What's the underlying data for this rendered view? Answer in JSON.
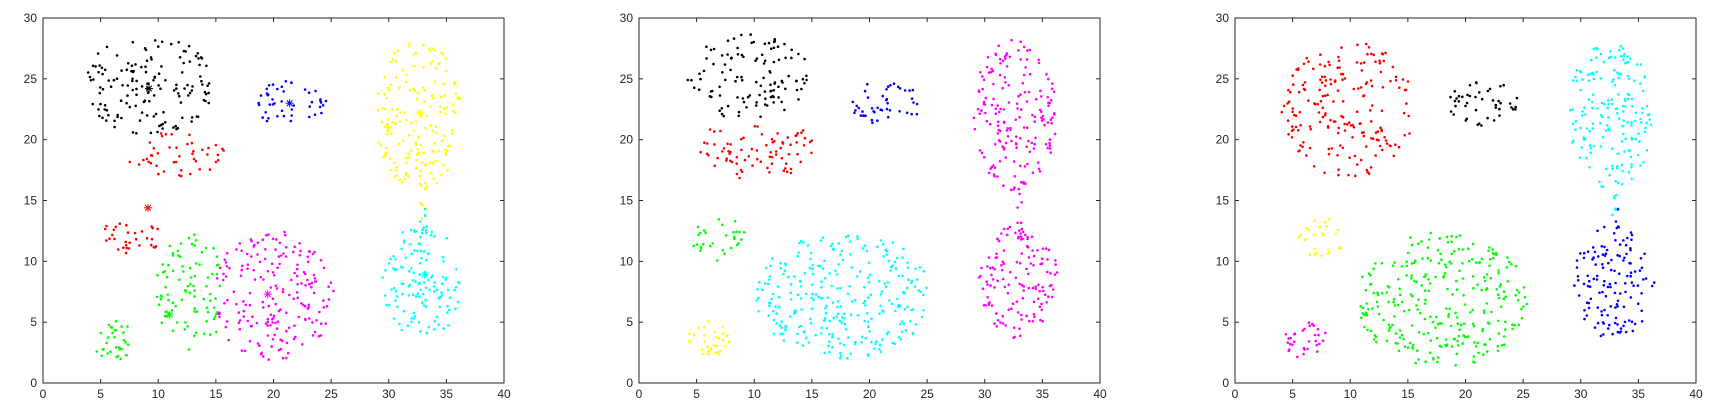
{
  "chart_data": [
    {
      "type": "scatter",
      "xlim": [
        0,
        40
      ],
      "ylim": [
        0,
        30
      ],
      "xticks": [
        "0",
        "5",
        "10",
        "15",
        "20",
        "25",
        "30",
        "35",
        "40"
      ],
      "yticks": [
        "0",
        "5",
        "10",
        "15",
        "20",
        "25",
        "30"
      ],
      "grid": false,
      "legend": "none",
      "clusters": [
        {
          "color": "#000000",
          "region": "ellipse",
          "cx": 9.2,
          "cy": 24.5,
          "rx": 5.6,
          "ry": 4.2,
          "xmax": 16.5,
          "n": 150
        },
        {
          "color": "#ff0000",
          "region": "ellipse",
          "cx": 11.5,
          "cy": 18.8,
          "rx": 4.5,
          "ry": 2.0,
          "n": 45
        },
        {
          "color": "#0000ff",
          "region": "ellipse",
          "cx": 21.5,
          "cy": 23.0,
          "rx": 3.1,
          "ry": 2.0,
          "n": 45
        },
        {
          "color": "#ffff00",
          "region": "ellipse",
          "cx": 32.6,
          "cy": 22.0,
          "rx": 3.7,
          "ry": 6.2,
          "n": 175
        },
        {
          "color": "#ffff00",
          "region": "bridge",
          "cx": 33.0,
          "cy": 15.0,
          "rx": 0.3,
          "ry": 1.8,
          "n": 8
        },
        {
          "color": "#ff0000",
          "region": "ellipse",
          "cx": 7.5,
          "cy": 12.0,
          "rx": 2.8,
          "ry": 1.8,
          "n": 32
        },
        {
          "color": "#00ff00",
          "region": "ellipse",
          "cx": 6.2,
          "cy": 3.5,
          "rx": 1.9,
          "ry": 1.6,
          "n": 32
        },
        {
          "color": "#00ff00",
          "region": "ellipse",
          "cx": 12.8,
          "cy": 7.5,
          "rx": 3.0,
          "ry": 5.0,
          "xmax": 15.4,
          "n": 90
        },
        {
          "color": "#ff00ff",
          "region": "ellipse",
          "cx": 20.0,
          "cy": 7.2,
          "rx": 5.3,
          "ry": 5.4,
          "xmin": 15.0,
          "n": 195
        },
        {
          "color": "#00ffff",
          "region": "ellipse",
          "cx": 32.9,
          "cy": 8.3,
          "rx": 3.5,
          "ry": 4.7,
          "n": 130
        },
        {
          "color": "#00ffff",
          "region": "bridge",
          "cx": 33.0,
          "cy": 13.5,
          "rx": 0.3,
          "ry": 1.6,
          "n": 8
        }
      ],
      "centroids": [
        {
          "x": 9.2,
          "y": 24.2,
          "color": "#000000"
        },
        {
          "x": 21.4,
          "y": 23.0,
          "color": "#0000ff"
        },
        {
          "x": 32.7,
          "y": 22.2,
          "color": "#ffff00"
        },
        {
          "x": 9.1,
          "y": 14.4,
          "color": "#ff0000"
        },
        {
          "x": 11.0,
          "y": 5.6,
          "color": "#00ff00"
        },
        {
          "x": 19.5,
          "y": 7.3,
          "color": "#ff00ff"
        },
        {
          "x": 33.1,
          "y": 8.9,
          "color": "#00ffff"
        }
      ]
    },
    {
      "type": "scatter",
      "xlim": [
        0,
        40
      ],
      "ylim": [
        0,
        30
      ],
      "xticks": [
        "0",
        "5",
        "10",
        "15",
        "20",
        "25",
        "30",
        "35",
        "40"
      ],
      "yticks": [
        "0",
        "5",
        "10",
        "15",
        "20",
        "25",
        "30"
      ],
      "grid": false,
      "legend": "none",
      "clusters": [
        {
          "color": "#000000",
          "region": "ellipse",
          "cx": 9.5,
          "cy": 25.2,
          "rx": 5.4,
          "ry": 3.6,
          "ymin": 21.3,
          "n": 115
        },
        {
          "color": "#ff0000",
          "region": "ellipse",
          "cx": 10.2,
          "cy": 19.5,
          "rx": 5.0,
          "ry": 2.8,
          "ymax": 21.3,
          "n": 80
        },
        {
          "color": "#0000ff",
          "region": "ellipse",
          "cx": 21.5,
          "cy": 23.0,
          "rx": 3.1,
          "ry": 2.0,
          "n": 45
        },
        {
          "color": "#ff00ff",
          "region": "ellipse",
          "cx": 32.6,
          "cy": 22.0,
          "rx": 3.7,
          "ry": 6.2,
          "n": 175
        },
        {
          "color": "#ff00ff",
          "region": "bridge",
          "cx": 33.0,
          "cy": 14.3,
          "rx": 0.3,
          "ry": 2.6,
          "n": 14
        },
        {
          "color": "#ff00ff",
          "region": "ellipse",
          "cx": 32.9,
          "cy": 8.3,
          "rx": 3.5,
          "ry": 4.7,
          "n": 130
        },
        {
          "color": "#00ff00",
          "region": "ellipse",
          "cx": 7.0,
          "cy": 11.8,
          "rx": 2.4,
          "ry": 1.9,
          "n": 30
        },
        {
          "color": "#ffff00",
          "region": "ellipse",
          "cx": 6.0,
          "cy": 3.5,
          "rx": 1.9,
          "ry": 1.6,
          "n": 32
        },
        {
          "color": "#00ffff",
          "region": "ellipse",
          "cx": 17.8,
          "cy": 7.2,
          "rx": 7.7,
          "ry": 5.2,
          "n": 285
        }
      ],
      "centroids": []
    },
    {
      "type": "scatter",
      "xlim": [
        0,
        40
      ],
      "ylim": [
        0,
        30
      ],
      "xticks": [
        "0",
        "5",
        "10",
        "15",
        "20",
        "25",
        "30",
        "35",
        "40"
      ],
      "yticks": [
        "0",
        "5",
        "10",
        "15",
        "20",
        "25",
        "30"
      ],
      "grid": false,
      "legend": "none",
      "clusters": [
        {
          "color": "#ff0000",
          "region": "ellipse",
          "cx": 9.8,
          "cy": 22.5,
          "rx": 5.8,
          "ry": 5.6,
          "xmax": 16.5,
          "n": 195
        },
        {
          "color": "#000000",
          "region": "ellipse",
          "cx": 21.5,
          "cy": 23.0,
          "rx": 3.1,
          "ry": 2.0,
          "n": 45
        },
        {
          "color": "#00ffff",
          "region": "ellipse",
          "cx": 32.6,
          "cy": 22.0,
          "rx": 3.7,
          "ry": 6.2,
          "n": 175
        },
        {
          "color": "#00ffff",
          "region": "bridge",
          "cx": 33.0,
          "cy": 15.0,
          "rx": 0.3,
          "ry": 1.8,
          "n": 8
        },
        {
          "color": "#0000ff",
          "region": "ellipse",
          "cx": 32.9,
          "cy": 8.3,
          "rx": 3.5,
          "ry": 4.7,
          "n": 130
        },
        {
          "color": "#0000ff",
          "region": "bridge",
          "cx": 33.0,
          "cy": 13.4,
          "rx": 0.3,
          "ry": 1.4,
          "n": 6
        },
        {
          "color": "#ffff00",
          "region": "ellipse",
          "cx": 7.7,
          "cy": 11.9,
          "rx": 2.2,
          "ry": 1.7,
          "n": 28
        },
        {
          "color": "#ff00ff",
          "region": "ellipse",
          "cx": 6.2,
          "cy": 3.5,
          "rx": 1.9,
          "ry": 1.6,
          "n": 32
        },
        {
          "color": "#00ff00",
          "region": "ellipse",
          "cx": 18.0,
          "cy": 6.8,
          "rx": 7.4,
          "ry": 5.6,
          "n": 290
        }
      ],
      "centroids": []
    }
  ]
}
